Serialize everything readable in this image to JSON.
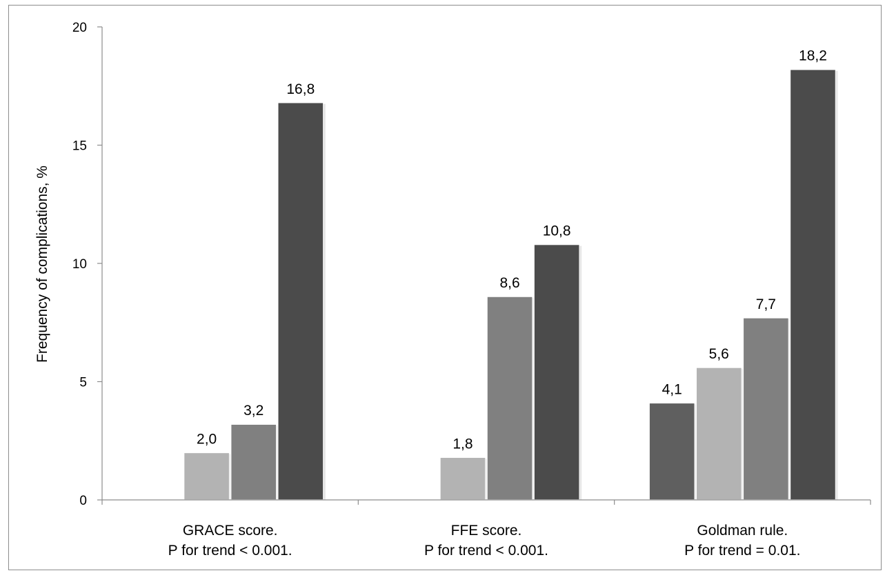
{
  "chart_data": {
    "type": "bar",
    "title": "",
    "ylabel": "Frequency of complications, %",
    "xlabel": "",
    "ylim": [
      0,
      20
    ],
    "yticks": [
      "0",
      "5",
      "10",
      "15",
      "20"
    ],
    "grid": false,
    "legend": "none",
    "categories": [
      {
        "line1": "GRACE score.",
        "line2": "P for trend < 0.001."
      },
      {
        "line1": "FFE score.",
        "line2": "P for trend < 0.001."
      },
      {
        "line1": "Goldman rule.",
        "line2": "P for trend = 0.01."
      }
    ],
    "series": [
      {
        "color": "#5f5f5f",
        "values": [
          null,
          null,
          4.1
        ],
        "labels": [
          "",
          "",
          "4,1"
        ]
      },
      {
        "color": "#b3b3b3",
        "values": [
          2.0,
          1.8,
          5.6
        ],
        "labels": [
          "2,0",
          "1,8",
          "5,6"
        ]
      },
      {
        "color": "#808080",
        "values": [
          3.2,
          8.6,
          7.7
        ],
        "labels": [
          "3,2",
          "8,6",
          "7,7"
        ]
      },
      {
        "color": "#4b4b4b",
        "values": [
          16.8,
          10.8,
          18.2
        ],
        "labels": [
          "16,8",
          "10,8",
          "18,2"
        ]
      }
    ]
  }
}
